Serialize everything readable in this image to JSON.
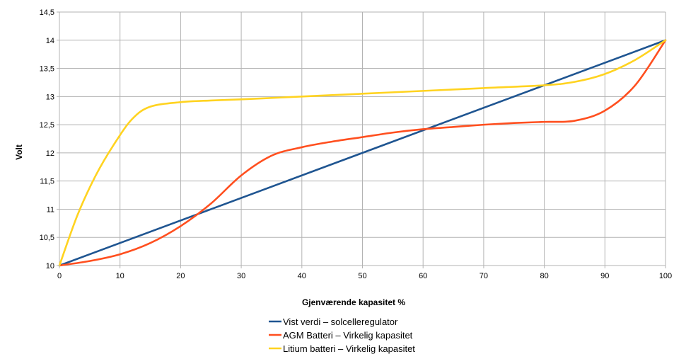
{
  "chart_data": {
    "type": "line",
    "xlabel": "Gjenværende kapasitet %",
    "ylabel": "Volt",
    "xlim": [
      0,
      100
    ],
    "ylim": [
      10,
      14.5
    ],
    "x_ticks": [
      0,
      10,
      20,
      30,
      40,
      50,
      60,
      70,
      80,
      90,
      100
    ],
    "y_ticks": [
      {
        "value": 10,
        "label": "10"
      },
      {
        "value": 10.5,
        "label": "10,5"
      },
      {
        "value": 11,
        "label": "11"
      },
      {
        "value": 11.5,
        "label": "11,5"
      },
      {
        "value": 12,
        "label": "12"
      },
      {
        "value": 12.5,
        "label": "12,5"
      },
      {
        "value": 13,
        "label": "13"
      },
      {
        "value": 13.5,
        "label": "13,5"
      },
      {
        "value": 14,
        "label": "14"
      },
      {
        "value": 14.5,
        "label": "14,5"
      }
    ],
    "grid": true,
    "legend_position": "bottom",
    "series": [
      {
        "name": "Vist verdi – solcelleregulator",
        "color": "#1f5591",
        "points": [
          [
            0,
            10
          ],
          [
            100,
            14
          ]
        ]
      },
      {
        "name": "AGM Batteri – Virkelig kapasitet",
        "color": "#ff4f1f",
        "points": [
          [
            0,
            10
          ],
          [
            5,
            10.08
          ],
          [
            10,
            10.2
          ],
          [
            15,
            10.4
          ],
          [
            20,
            10.7
          ],
          [
            25,
            11.1
          ],
          [
            30,
            11.6
          ],
          [
            35,
            11.95
          ],
          [
            40,
            12.1
          ],
          [
            45,
            12.2
          ],
          [
            50,
            12.28
          ],
          [
            55,
            12.36
          ],
          [
            60,
            12.42
          ],
          [
            65,
            12.46
          ],
          [
            70,
            12.5
          ],
          [
            75,
            12.53
          ],
          [
            80,
            12.55
          ],
          [
            85,
            12.57
          ],
          [
            90,
            12.75
          ],
          [
            95,
            13.2
          ],
          [
            100,
            14
          ]
        ]
      },
      {
        "name": "Litium batteri – Virkelig kapasitet",
        "color": "#ffd320",
        "points": [
          [
            0,
            10
          ],
          [
            3,
            10.9
          ],
          [
            6,
            11.6
          ],
          [
            9,
            12.15
          ],
          [
            12,
            12.6
          ],
          [
            15,
            12.82
          ],
          [
            20,
            12.9
          ],
          [
            25,
            12.93
          ],
          [
            30,
            12.95
          ],
          [
            40,
            13
          ],
          [
            50,
            13.05
          ],
          [
            60,
            13.1
          ],
          [
            70,
            13.15
          ],
          [
            80,
            13.2
          ],
          [
            85,
            13.26
          ],
          [
            90,
            13.4
          ],
          [
            95,
            13.65
          ],
          [
            100,
            14
          ]
        ]
      }
    ]
  }
}
